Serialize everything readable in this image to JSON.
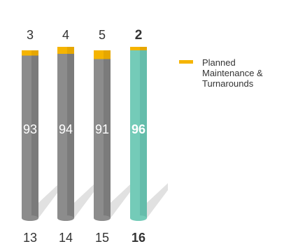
{
  "chart_data": {
    "type": "bar",
    "stacked": true,
    "categories": [
      "13",
      "14",
      "15",
      "16"
    ],
    "highlight_category": "16",
    "series": [
      {
        "values": [
          93,
          94,
          91,
          96
        ]
      },
      {
        "name": "Planned Maintenance & Turnarounds",
        "values": [
          3,
          4,
          5,
          2
        ]
      }
    ],
    "ylim": [
      0,
      100
    ],
    "grid": false,
    "legend": "right",
    "colors": {
      "bar": "#8c8c8c",
      "bar_dark": "#6e6e6e",
      "bar_highlight": "#74cbb8",
      "bar_highlight_dark": "#5ab3a0",
      "maintenance": "#f5b400",
      "maintenance_dark": "#dc9e00",
      "shadow": "#d7d7d7",
      "text": "#333333",
      "bar_label": "#ffffff"
    }
  },
  "legend": {
    "label": "Planned Maintenance & Turnarounds"
  }
}
